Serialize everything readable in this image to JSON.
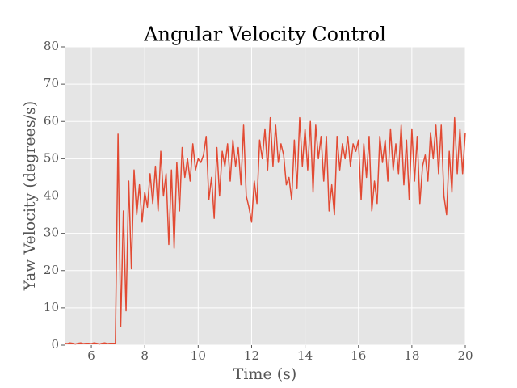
{
  "chart_data": {
    "type": "line",
    "title": "Angular Velocity Control",
    "x_label": "Time (s)",
    "y_label": "Yaw Velocity (degrees/s)",
    "color": "#e24a33",
    "grid": true,
    "xlim": [
      5,
      20
    ],
    "ylim": [
      0,
      80
    ],
    "xticks": [
      6,
      8,
      10,
      12,
      14,
      16,
      18,
      20
    ],
    "yticks": [
      0,
      10,
      20,
      30,
      40,
      50,
      60,
      70,
      80
    ],
    "x": [
      5.0,
      5.1,
      5.2,
      5.3,
      5.4,
      5.5,
      5.6,
      5.7,
      5.8,
      5.9,
      6.0,
      6.1,
      6.2,
      6.3,
      6.4,
      6.5,
      6.6,
      6.7,
      6.8,
      6.9,
      7.0,
      7.1,
      7.2,
      7.3,
      7.4,
      7.5,
      7.6,
      7.7,
      7.8,
      7.9,
      8.0,
      8.1,
      8.2,
      8.3,
      8.4,
      8.5,
      8.6,
      8.7,
      8.8,
      8.9,
      9.0,
      9.1,
      9.2,
      9.3,
      9.4,
      9.5,
      9.6,
      9.7,
      9.8,
      9.9,
      10.0,
      10.1,
      10.2,
      10.3,
      10.4,
      10.5,
      10.6,
      10.7,
      10.8,
      10.9,
      11.0,
      11.1,
      11.2,
      11.3,
      11.4,
      11.5,
      11.6,
      11.7,
      11.8,
      11.9,
      12.0,
      12.1,
      12.2,
      12.3,
      12.4,
      12.5,
      12.6,
      12.7,
      12.8,
      12.9,
      13.0,
      13.1,
      13.2,
      13.3,
      13.4,
      13.5,
      13.6,
      13.7,
      13.8,
      13.9,
      14.0,
      14.1,
      14.2,
      14.3,
      14.4,
      14.5,
      14.6,
      14.7,
      14.8,
      14.9,
      15.0,
      15.1,
      15.2,
      15.3,
      15.4,
      15.5,
      15.6,
      15.7,
      15.8,
      15.9,
      16.0,
      16.1,
      16.2,
      16.3,
      16.4,
      16.5,
      16.6,
      16.7,
      16.8,
      16.9,
      17.0,
      17.1,
      17.2,
      17.3,
      17.4,
      17.5,
      17.6,
      17.7,
      17.8,
      17.9,
      18.0,
      18.1,
      18.2,
      18.3,
      18.4,
      18.5,
      18.6,
      18.7,
      18.8,
      18.9,
      19.0,
      19.1,
      19.2,
      19.3,
      19.4,
      19.5,
      19.6,
      19.7,
      19.8,
      19.9,
      20.0
    ],
    "values": [
      0.5,
      0.4,
      0.6,
      0.5,
      0.3,
      0.5,
      0.6,
      0.4,
      0.5,
      0.5,
      0.4,
      0.6,
      0.5,
      0.3,
      0.5,
      0.6,
      0.4,
      0.5,
      0.5,
      0.5,
      56.6,
      5,
      36,
      9.2,
      44,
      20.5,
      47,
      35,
      43,
      33,
      41,
      37,
      46,
      38,
      48,
      36,
      52,
      40,
      46,
      27,
      47,
      26,
      49,
      36,
      53,
      45,
      50,
      44,
      54,
      47,
      50,
      49,
      51,
      56,
      39,
      45,
      34,
      53,
      40,
      52,
      48,
      54,
      44,
      55,
      48,
      53,
      43,
      59,
      40,
      37,
      33,
      44,
      38,
      55,
      50,
      58,
      47,
      61,
      48,
      59,
      49,
      54,
      51,
      43,
      45,
      39,
      55,
      42,
      61,
      48,
      58,
      47,
      60,
      41,
      59,
      50,
      56,
      44,
      56,
      36,
      43,
      35,
      56,
      47,
      54,
      50,
      56,
      48,
      54,
      52,
      55,
      39,
      54,
      45,
      56,
      36,
      44,
      38,
      56,
      49,
      55,
      44,
      58,
      47,
      54,
      46,
      59,
      43,
      55,
      39,
      58,
      44,
      56,
      38,
      48,
      51,
      44,
      57,
      50,
      59,
      46,
      59,
      40,
      35,
      52,
      41,
      61,
      46,
      58,
      46,
      57
    ]
  }
}
